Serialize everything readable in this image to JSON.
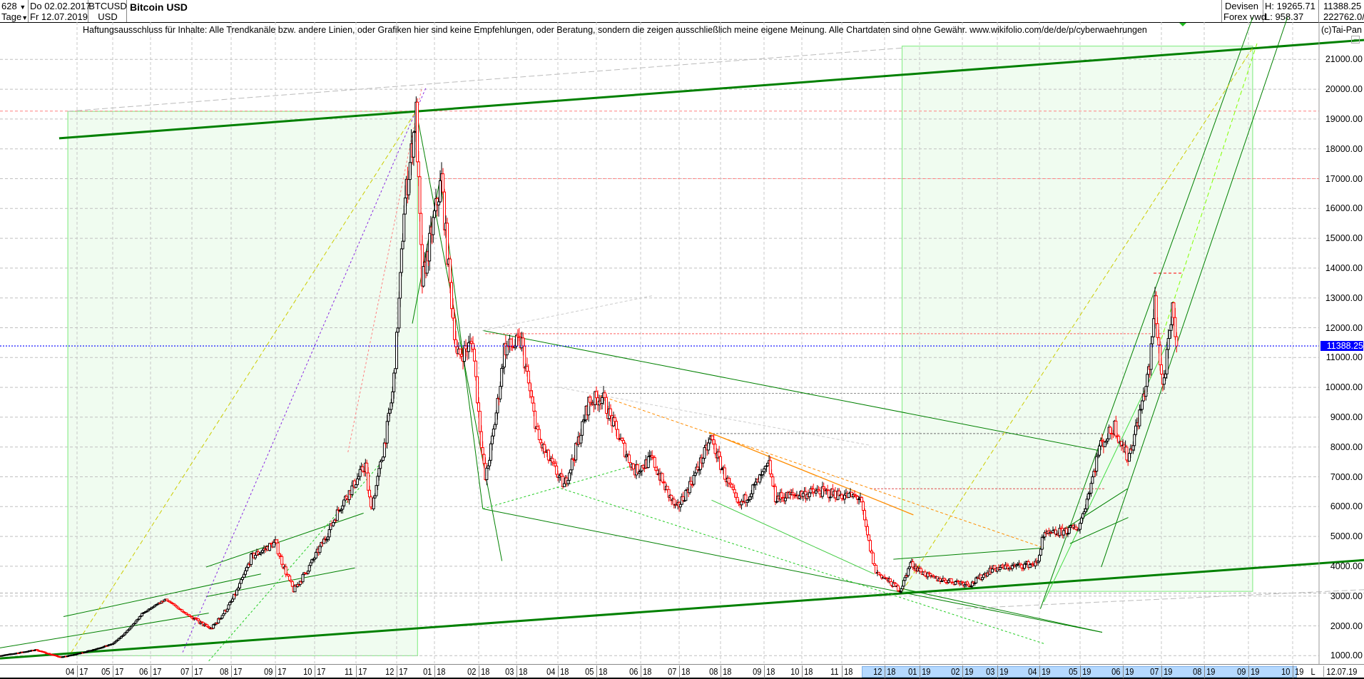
{
  "header": {
    "bars": "628",
    "period": "Tage",
    "date_from": "Do 02.02.2017",
    "date_to": "Fr 12.07.2019",
    "symbol": "BTCUSD",
    "currency": "USD",
    "title": "Bitcoin USD",
    "exchange_1": "Devisen",
    "exchange_2": "Forex vwd",
    "high": "H: 19265.71",
    "low": "L: 958.37",
    "last": "11388.25",
    "volume": "222762.0/"
  },
  "disclaimer": "Haftungsausschluss für Inhalte: Alle Trendkanäle bzw. andere Linien, oder Grafiken hier sind keine Empfehlungen, oder Beratung, sondern die zeigen ausschließlich meine eigene Meinung. Alle Chartdaten sind ohne Gewähr.  www.wikifolio.com/de/de/p/cyberwaehrungen",
  "copyright": "(c)Tai-Pan",
  "chart_data": {
    "type": "candlestick",
    "title": "Bitcoin USD",
    "ylim": [
      1000,
      21000
    ],
    "grid": true,
    "y_ticks": [
      "21000.00",
      "20000.00",
      "19000.00",
      "18000.00",
      "17000.00",
      "16000.00",
      "15000.00",
      "14000.00",
      "13000.00",
      "12000.00",
      "11000.00",
      "10000.00",
      "9000.00",
      "8000.00",
      "7000.00",
      "6000.00",
      "5000.00",
      "4000.00",
      "3000.00",
      "2000.00",
      "1000.00"
    ],
    "x_ticks": [
      {
        "m": "04",
        "y": "17"
      },
      {
        "m": "05",
        "y": "17"
      },
      {
        "m": "06",
        "y": "17"
      },
      {
        "m": "07",
        "y": "17"
      },
      {
        "m": "08",
        "y": "17"
      },
      {
        "m": "09",
        "y": "17"
      },
      {
        "m": "10",
        "y": "17"
      },
      {
        "m": "11",
        "y": "17"
      },
      {
        "m": "12",
        "y": "17"
      },
      {
        "m": "01",
        "y": "18"
      },
      {
        "m": "02",
        "y": "18"
      },
      {
        "m": "03",
        "y": "18"
      },
      {
        "m": "04",
        "y": "18"
      },
      {
        "m": "05",
        "y": "18"
      },
      {
        "m": "06",
        "y": "18"
      },
      {
        "m": "07",
        "y": "18"
      },
      {
        "m": "08",
        "y": "18"
      },
      {
        "m": "09",
        "y": "18"
      },
      {
        "m": "10",
        "y": "18"
      },
      {
        "m": "11",
        "y": "18"
      },
      {
        "m": "12",
        "y": "18"
      },
      {
        "m": "01",
        "y": "19"
      },
      {
        "m": "02",
        "y": "19"
      },
      {
        "m": "03",
        "y": "19"
      },
      {
        "m": "04",
        "y": "19"
      },
      {
        "m": "05",
        "y": "19"
      },
      {
        "m": "06",
        "y": "19"
      },
      {
        "m": "07",
        "y": "19"
      },
      {
        "m": "08",
        "y": "19"
      },
      {
        "m": "09",
        "y": "19"
      },
      {
        "m": "10",
        "y": "19"
      }
    ],
    "x_end_marker": "L",
    "x_end_date": "12.07.19",
    "last_price": 11388.25,
    "last_price_label": "11388.25",
    "high": 19265.71,
    "low": 958.37,
    "price_path": [
      [
        "2017-02-02",
        1000
      ],
      [
        "2017-03-01",
        1200
      ],
      [
        "2017-03-20",
        950
      ],
      [
        "2017-05-01",
        1400
      ],
      [
        "2017-05-25",
        2400
      ],
      [
        "2017-06-12",
        2900
      ],
      [
        "2017-07-16",
        1900
      ],
      [
        "2017-08-01",
        2800
      ],
      [
        "2017-08-15",
        4300
      ],
      [
        "2017-09-01",
        4800
      ],
      [
        "2017-09-15",
        3200
      ],
      [
        "2017-10-01",
        4300
      ],
      [
        "2017-10-20",
        6000
      ],
      [
        "2017-11-08",
        7400
      ],
      [
        "2017-11-12",
        5900
      ],
      [
        "2017-11-28",
        9800
      ],
      [
        "2017-12-07",
        16000
      ],
      [
        "2017-12-17",
        19200
      ],
      [
        "2017-12-22",
        13500
      ],
      [
        "2018-01-06",
        17000
      ],
      [
        "2018-01-17",
        11000
      ],
      [
        "2018-01-28",
        11500
      ],
      [
        "2018-02-06",
        6900
      ],
      [
        "2018-02-20",
        11300
      ],
      [
        "2018-03-05",
        11500
      ],
      [
        "2018-03-18",
        8200
      ],
      [
        "2018-04-06",
        6700
      ],
      [
        "2018-04-25",
        9500
      ],
      [
        "2018-05-05",
        9700
      ],
      [
        "2018-05-28",
        7200
      ],
      [
        "2018-06-10",
        7600
      ],
      [
        "2018-06-29",
        5900
      ],
      [
        "2018-07-25",
        8300
      ],
      [
        "2018-08-14",
        6000
      ],
      [
        "2018-09-05",
        7400
      ],
      [
        "2018-09-10",
        6300
      ],
      [
        "2018-10-15",
        6500
      ],
      [
        "2018-11-14",
        6300
      ],
      [
        "2018-11-25",
        3800
      ],
      [
        "2018-12-15",
        3200
      ],
      [
        "2018-12-24",
        4100
      ],
      [
        "2019-01-10",
        3600
      ],
      [
        "2019-02-08",
        3400
      ],
      [
        "2019-02-24",
        3900
      ],
      [
        "2019-03-31",
        4100
      ],
      [
        "2019-04-03",
        5000
      ],
      [
        "2019-04-30",
        5300
      ],
      [
        "2019-05-15",
        8000
      ],
      [
        "2019-05-26",
        8700
      ],
      [
        "2019-06-05",
        7600
      ],
      [
        "2019-06-22",
        10700
      ],
      [
        "2019-06-26",
        12900
      ],
      [
        "2019-07-02",
        10000
      ],
      [
        "2019-07-09",
        12500
      ],
      [
        "2019-07-12",
        11388.25
      ]
    ],
    "horizontal_levels": [
      19265.71,
      17000,
      11800,
      9800,
      8450,
      6600,
      3100,
      13830
    ],
    "colors": {
      "up": "#000000",
      "down": "#ff0000",
      "trend": "#008000",
      "zone_fill": "#f0fcf0",
      "zone_border": "#90ee90",
      "last_line": "#0000ff",
      "selection": "#b5d9ff"
    }
  }
}
